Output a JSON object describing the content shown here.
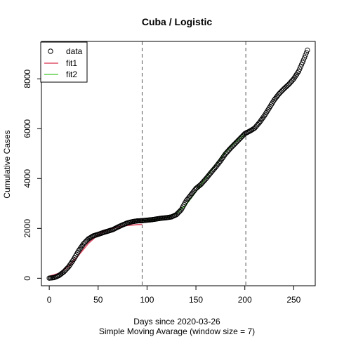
{
  "chart_data": {
    "type": "scatter",
    "title": "Cuba / Logistic",
    "xlabel": "Days since 2020-03-26",
    "sublabel": "Simple Moving Avarage (window size = 7)",
    "ylabel": "Cumulative Cases",
    "xlim": [
      -8,
      272
    ],
    "ylim": [
      -300,
      9500
    ],
    "xticks": [
      0,
      50,
      100,
      150,
      200,
      250
    ],
    "yticks": [
      0,
      2000,
      4000,
      6000,
      8000
    ],
    "vlines": [
      95,
      201
    ],
    "legend": {
      "position": "top-left",
      "entries": [
        "data",
        "fit1",
        "fit2"
      ]
    },
    "colors": {
      "data": "#000000",
      "fit1": "#DF536B",
      "fit2": "#61D04F",
      "vline": "#555555"
    },
    "data_points": [
      [
        0,
        5
      ],
      [
        5,
        25
      ],
      [
        10,
        110
      ],
      [
        15,
        260
      ],
      [
        20,
        470
      ],
      [
        25,
        760
      ],
      [
        30,
        1100
      ],
      [
        35,
        1380
      ],
      [
        40,
        1580
      ],
      [
        45,
        1700
      ],
      [
        50,
        1760
      ],
      [
        55,
        1830
      ],
      [
        60,
        1890
      ],
      [
        65,
        1950
      ],
      [
        70,
        2050
      ],
      [
        75,
        2140
      ],
      [
        80,
        2220
      ],
      [
        85,
        2270
      ],
      [
        90,
        2300
      ],
      [
        95,
        2310
      ],
      [
        100,
        2330
      ],
      [
        105,
        2350
      ],
      [
        110,
        2380
      ],
      [
        115,
        2410
      ],
      [
        120,
        2430
      ],
      [
        125,
        2460
      ],
      [
        130,
        2550
      ],
      [
        135,
        2750
      ],
      [
        140,
        3100
      ],
      [
        145,
        3350
      ],
      [
        150,
        3600
      ],
      [
        155,
        3760
      ],
      [
        160,
        3980
      ],
      [
        165,
        4220
      ],
      [
        170,
        4450
      ],
      [
        175,
        4700
      ],
      [
        180,
        4980
      ],
      [
        185,
        5200
      ],
      [
        190,
        5400
      ],
      [
        195,
        5600
      ],
      [
        200,
        5800
      ],
      [
        205,
        5900
      ],
      [
        210,
        6020
      ],
      [
        215,
        6250
      ],
      [
        220,
        6520
      ],
      [
        225,
        6830
      ],
      [
        230,
        7150
      ],
      [
        235,
        7400
      ],
      [
        240,
        7600
      ],
      [
        245,
        7780
      ],
      [
        250,
        8000
      ],
      [
        255,
        8300
      ],
      [
        260,
        8750
      ],
      [
        264,
        9150
      ]
    ],
    "fit1": [
      [
        0,
        80
      ],
      [
        10,
        200
      ],
      [
        20,
        480
      ],
      [
        30,
        920
      ],
      [
        40,
        1400
      ],
      [
        50,
        1750
      ],
      [
        60,
        1950
      ],
      [
        70,
        2060
      ],
      [
        80,
        2120
      ],
      [
        90,
        2150
      ],
      [
        95,
        2160
      ]
    ],
    "fit2": [
      [
        96,
        2300
      ],
      [
        110,
        2360
      ],
      [
        120,
        2440
      ],
      [
        130,
        2600
      ],
      [
        140,
        2950
      ],
      [
        150,
        3480
      ],
      [
        160,
        4020
      ],
      [
        170,
        4550
      ],
      [
        180,
        5050
      ],
      [
        190,
        5450
      ],
      [
        200,
        5770
      ]
    ]
  }
}
